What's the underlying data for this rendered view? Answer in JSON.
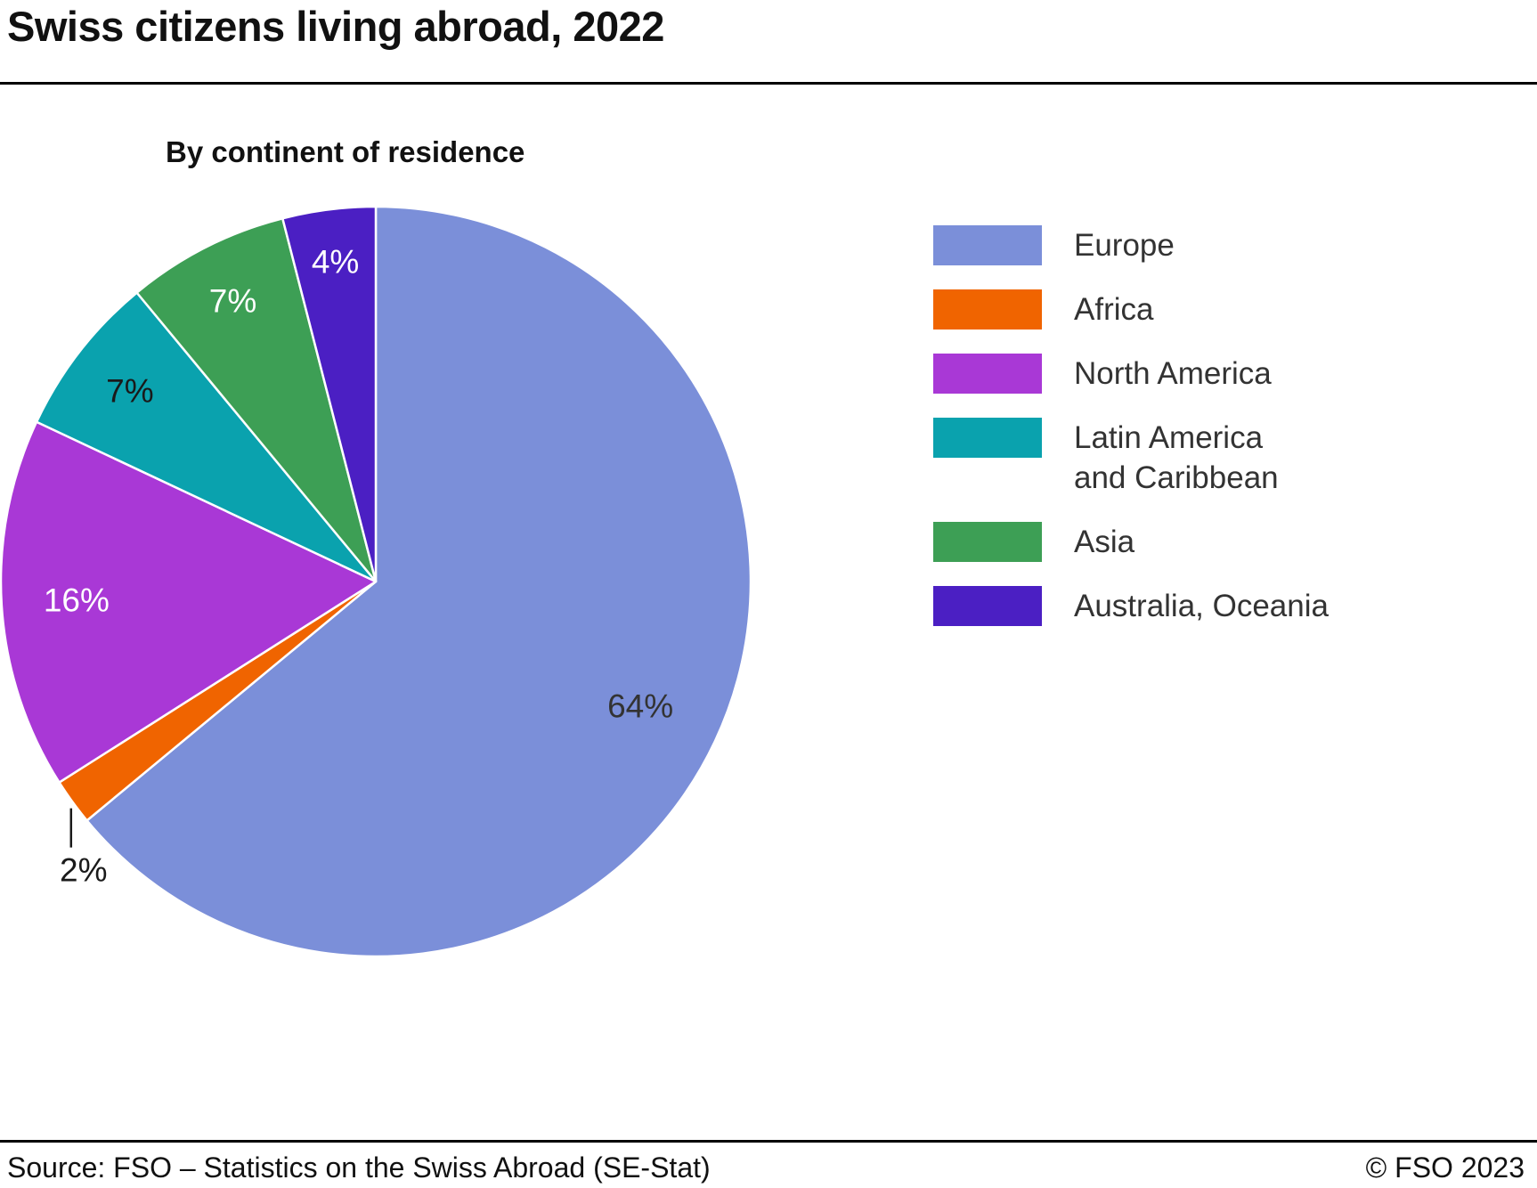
{
  "title": "Swiss citizens living abroad, 2022",
  "subtitle": "By continent of residence",
  "footer": {
    "source": "Source: FSO – Statistics on the Swiss Abroad (SE-Stat)",
    "copyright": "© FSO 2023"
  },
  "chart_data": {
    "type": "pie",
    "title": "By continent of residence",
    "start_angle_deg": 0,
    "direction": "clockwise",
    "slices": [
      {
        "label": "Europe",
        "value": 64,
        "pct_label": "64%",
        "color": "#7B8FD9",
        "label_color": "#333333",
        "label_r": 0.78
      },
      {
        "label": "Africa",
        "value": 2,
        "pct_label": "2%",
        "color": "#F06400",
        "label_color": "#1A1A1A",
        "outside": true
      },
      {
        "label": "North America",
        "value": 16,
        "pct_label": "16%",
        "color": "#A938D6",
        "label_color": "#FFFFFF",
        "label_r": 0.8
      },
      {
        "label": "Latin America and Caribbean",
        "value": 7,
        "pct_label": "7%",
        "color": "#0AA2AE",
        "label_color": "#1A1A1A",
        "label_r": 0.83
      },
      {
        "label": "Asia",
        "value": 7,
        "pct_label": "7%",
        "color": "#3D9F55",
        "label_color": "#FFFFFF",
        "label_r": 0.84
      },
      {
        "label": "Australia, Oceania",
        "value": 4,
        "pct_label": "4%",
        "color": "#4B1FC3",
        "label_color": "#FFFFFF",
        "label_r": 0.86
      }
    ],
    "legend": [
      {
        "label": "Europe",
        "color": "#7B8FD9"
      },
      {
        "label": "Africa",
        "color": "#F06400"
      },
      {
        "label": "North America",
        "color": "#A938D6"
      },
      {
        "label": "Latin America\nand Caribbean",
        "color": "#0AA2AE"
      },
      {
        "label": "Asia",
        "color": "#3D9F55"
      },
      {
        "label": "Australia, Oceania",
        "color": "#4B1FC3"
      }
    ],
    "legend_position": "right"
  }
}
